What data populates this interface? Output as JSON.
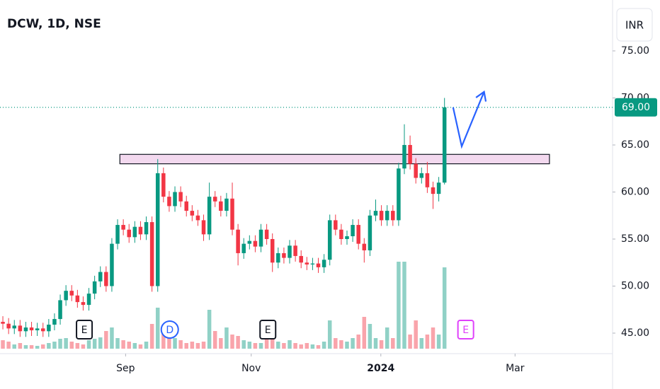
{
  "chart_data": {
    "type": "candlestick",
    "title": "DCW, 1D, NSE",
    "currency": "INR",
    "xlim": [
      -0.5,
      106.3
    ],
    "xticks": [
      {
        "value": 21.4,
        "label": "Sep"
      },
      {
        "value": 43.3,
        "label": "Nov"
      },
      {
        "value": 65.9,
        "label": "2024"
      },
      {
        "value": 89.3,
        "label": "Mar"
      }
    ],
    "ylim": [
      42.82,
      80.41
    ],
    "yticks": [
      {
        "value": 45,
        "label": "45.00"
      },
      {
        "value": 50,
        "label": "50.00"
      },
      {
        "value": 55,
        "label": "55.00"
      },
      {
        "value": 60,
        "label": "60.00"
      },
      {
        "value": 65,
        "label": "65.00"
      },
      {
        "value": 70,
        "label": "70.00"
      },
      {
        "value": 75,
        "label": "75.00"
      }
    ],
    "up_color": "#089981",
    "down_color": "#f23645",
    "open": [
      46.2,
      46,
      45.5,
      45.8,
      45.2,
      45.6,
      45.3,
      45.5,
      45.2,
      45.9,
      46.5,
      48.5,
      49.5,
      49,
      48.3,
      48,
      49.2,
      50.5,
      51.5,
      50,
      54.5,
      56.5,
      56,
      55.2,
      56.3,
      55.5,
      56.8,
      50,
      62,
      59.5,
      58.5,
      60,
      59,
      58,
      57.5,
      57,
      55.5,
      59.5,
      59,
      58,
      59.3,
      56,
      53.5,
      54.5,
      54.8,
      54.2,
      56,
      55,
      52.5,
      53.5,
      53,
      54.3,
      53.2,
      52.5,
      52.3,
      52.4,
      52,
      52.8,
      57,
      56,
      55,
      55.3,
      56.5,
      54.5,
      53.8,
      57.5,
      58,
      57,
      58,
      57,
      62.5,
      65,
      63,
      61.5,
      62,
      60.5,
      59.8,
      61
    ],
    "high": [
      46.8,
      46.6,
      46.4,
      46.4,
      46.2,
      46.2,
      46.1,
      46.1,
      46.5,
      47.1,
      49.1,
      50.1,
      50.1,
      49.6,
      48.9,
      49.8,
      51.1,
      52.1,
      52.1,
      55.1,
      57.1,
      57.1,
      56.6,
      56.9,
      56.9,
      57.4,
      57.4,
      63.5,
      62.6,
      60.1,
      60.6,
      60.6,
      59.6,
      58.6,
      58.1,
      57.6,
      61,
      60.1,
      59.6,
      59.9,
      61,
      56.6,
      55.1,
      55.4,
      55.4,
      56.6,
      56.6,
      55.6,
      54.1,
      54.1,
      54.9,
      54.9,
      53.8,
      53.1,
      53,
      53,
      53.4,
      57.6,
      57.6,
      56.6,
      55.9,
      57.1,
      57.1,
      55.1,
      58.1,
      59.2,
      58.6,
      58.6,
      58.6,
      63.1,
      67.2,
      66,
      63.6,
      62.6,
      63.2,
      61.1,
      61.6,
      70
    ],
    "low": [
      45.4,
      44.9,
      44.9,
      44.6,
      44.6,
      44.7,
      44.7,
      44.6,
      44.6,
      45.3,
      45.9,
      47.9,
      48.4,
      47.7,
      47.4,
      47.4,
      48.6,
      49.9,
      49.4,
      49.4,
      53.9,
      55.4,
      54.6,
      54.6,
      54.9,
      54.9,
      49.4,
      49.4,
      58.9,
      57.9,
      57.9,
      58.4,
      57.4,
      56.9,
      56.4,
      54.8,
      54.9,
      58.4,
      57.4,
      57.4,
      55.4,
      52.2,
      52.9,
      53.9,
      53.6,
      53.6,
      54.4,
      51.5,
      51.9,
      52.4,
      52.4,
      52.6,
      51.9,
      51.7,
      51.7,
      51.4,
      51.4,
      52.2,
      55.4,
      54.4,
      54.4,
      54.7,
      53.9,
      52.5,
      53.2,
      56.9,
      56.4,
      56.4,
      56.4,
      56.4,
      61.9,
      62.4,
      60.9,
      60.9,
      59.9,
      58.2,
      59,
      60.8
    ],
    "close": [
      46,
      45.5,
      45.8,
      45.2,
      45.6,
      45.3,
      45.5,
      45.2,
      45.9,
      46.5,
      48.5,
      49.5,
      49,
      48.3,
      48,
      49.2,
      50.5,
      51.5,
      50,
      54.5,
      56.5,
      56,
      55.2,
      56.3,
      55.5,
      56.8,
      50,
      62,
      59.5,
      58.5,
      60,
      59,
      58,
      57.5,
      57,
      55.5,
      59.5,
      59,
      58,
      59.3,
      56,
      53.5,
      54.5,
      54.8,
      54.2,
      56,
      55,
      52.5,
      53.5,
      53,
      54.3,
      53.2,
      52.5,
      52.3,
      52.4,
      52,
      52.8,
      57,
      56,
      55,
      55.3,
      56.5,
      54.5,
      53.8,
      57.5,
      58,
      57,
      58,
      57,
      62.5,
      65,
      63,
      61.5,
      62,
      60.5,
      59.8,
      61,
      69
    ],
    "volume": [
      12,
      10,
      6,
      8,
      5,
      5,
      4,
      6,
      8,
      10,
      14,
      15,
      10,
      8,
      6,
      12,
      14,
      16,
      25,
      30,
      15,
      12,
      10,
      8,
      6,
      10,
      35,
      58,
      22,
      18,
      15,
      12,
      8,
      10,
      8,
      10,
      55,
      25,
      15,
      30,
      20,
      18,
      12,
      10,
      8,
      8,
      20,
      15,
      10,
      8,
      12,
      8,
      6,
      8,
      6,
      5,
      10,
      40,
      15,
      12,
      10,
      15,
      20,
      45,
      35,
      15,
      12,
      30,
      15,
      123,
      123,
      20,
      40,
      15,
      20,
      30,
      20,
      115
    ],
    "last_price": {
      "value": 69,
      "label": "69.00"
    },
    "zone": {
      "x": [
        20.4,
        95.3
      ],
      "y": [
        63,
        64
      ],
      "color": "#f3d9ef"
    },
    "arrow": {
      "x": [
        78.5,
        80,
        83.9
      ],
      "y": [
        69,
        64.85,
        70.65
      ],
      "color": "#2962ff"
    },
    "events": [
      {
        "label": "E",
        "x": 14.2,
        "color": "#131722"
      },
      {
        "label": "D",
        "x": 29.1,
        "color": "#2962ff"
      },
      {
        "label": "E",
        "x": 46.2,
        "color": "#131722"
      },
      {
        "label": "E",
        "x": 80.7,
        "color": "#e040fb"
      }
    ]
  }
}
